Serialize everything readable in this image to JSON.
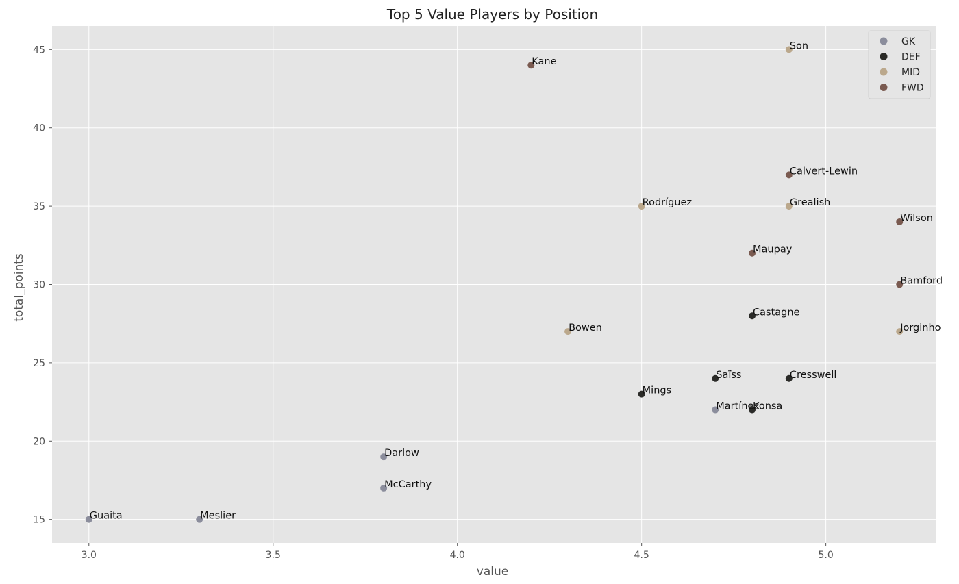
{
  "chart_data": {
    "type": "scatter",
    "title": "Top 5 Value Players by Position",
    "xlabel": "value",
    "ylabel": "total_points",
    "xlim": [
      2.9,
      5.3
    ],
    "ylim": [
      13.5,
      46.5
    ],
    "xticks": [
      3.0,
      3.5,
      4.0,
      4.5,
      5.0
    ],
    "xtick_labels": [
      "3.0",
      "3.5",
      "4.0",
      "4.5",
      "5.0"
    ],
    "yticks": [
      15,
      20,
      25,
      30,
      35,
      40,
      45
    ],
    "ytick_labels": [
      "15",
      "20",
      "25",
      "30",
      "35",
      "40",
      "45"
    ],
    "grid": true,
    "legend_position": "top-right",
    "colors": {
      "background": "#e5e5e5",
      "grid": "#ffffff"
    },
    "series": [
      {
        "name": "GK",
        "color": "#8b8d9c",
        "points": [
          {
            "label": "Guaita",
            "x": 3.0,
            "y": 15
          },
          {
            "label": "Meslier",
            "x": 3.3,
            "y": 15
          },
          {
            "label": "McCarthy",
            "x": 3.8,
            "y": 17
          },
          {
            "label": "Darlow",
            "x": 3.8,
            "y": 19
          },
          {
            "label": "Martínez",
            "x": 4.7,
            "y": 22
          }
        ]
      },
      {
        "name": "DEF",
        "color": "#2b2b28",
        "points": [
          {
            "label": "Mings",
            "x": 4.5,
            "y": 23
          },
          {
            "label": "Saïss",
            "x": 4.7,
            "y": 24
          },
          {
            "label": "Konsa",
            "x": 4.8,
            "y": 22
          },
          {
            "label": "Castagne",
            "x": 4.8,
            "y": 28
          },
          {
            "label": "Cresswell",
            "x": 4.9,
            "y": 24
          }
        ]
      },
      {
        "name": "MID",
        "color": "#bba88c",
        "points": [
          {
            "label": "Bowen",
            "x": 4.3,
            "y": 27
          },
          {
            "label": "Rodríguez",
            "x": 4.5,
            "y": 35
          },
          {
            "label": "Grealish",
            "x": 4.9,
            "y": 35
          },
          {
            "label": "Son",
            "x": 4.9,
            "y": 45
          },
          {
            "label": "Jorginho",
            "x": 5.2,
            "y": 27
          }
        ]
      },
      {
        "name": "FWD",
        "color": "#7a5a50",
        "points": [
          {
            "label": "Kane",
            "x": 4.2,
            "y": 44
          },
          {
            "label": "Maupay",
            "x": 4.8,
            "y": 32
          },
          {
            "label": "Calvert-Lewin",
            "x": 4.9,
            "y": 37
          },
          {
            "label": "Wilson",
            "x": 5.2,
            "y": 34
          },
          {
            "label": "Bamford",
            "x": 5.2,
            "y": 30
          }
        ]
      }
    ]
  }
}
